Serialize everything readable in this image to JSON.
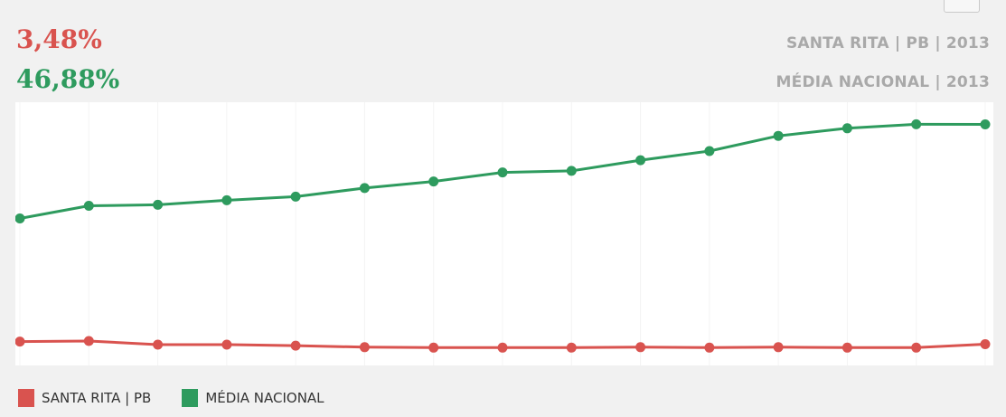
{
  "header": {
    "red_value": "3,48%",
    "green_value": "46,88%",
    "caption_1": "SANTA RITA | PB | 2013",
    "caption_2": "MÉDIA NACIONAL | 2013"
  },
  "colors": {
    "santa_rita": "#d9534f",
    "media_nacional": "#2e9b5e"
  },
  "chart_data": {
    "type": "line",
    "title": "",
    "xlabel": "",
    "ylabel": "",
    "grid": true,
    "legend_position": "bottom-left",
    "ylim": [
      0,
      50
    ],
    "x_count": 15,
    "series": [
      {
        "name": "SANTA RITA | PB",
        "color": "#d9534f",
        "values": [
          4.0,
          4.1,
          3.4,
          3.4,
          3.2,
          2.9,
          2.8,
          2.8,
          2.8,
          2.9,
          2.8,
          2.9,
          2.8,
          2.8,
          3.48
        ]
      },
      {
        "name": "MÉDIA NACIONAL",
        "color": "#2e9b5e",
        "values": [
          28.3,
          30.8,
          31.0,
          31.9,
          32.6,
          34.3,
          35.6,
          37.4,
          37.7,
          39.8,
          41.6,
          44.6,
          46.1,
          46.9,
          46.88
        ]
      }
    ]
  }
}
